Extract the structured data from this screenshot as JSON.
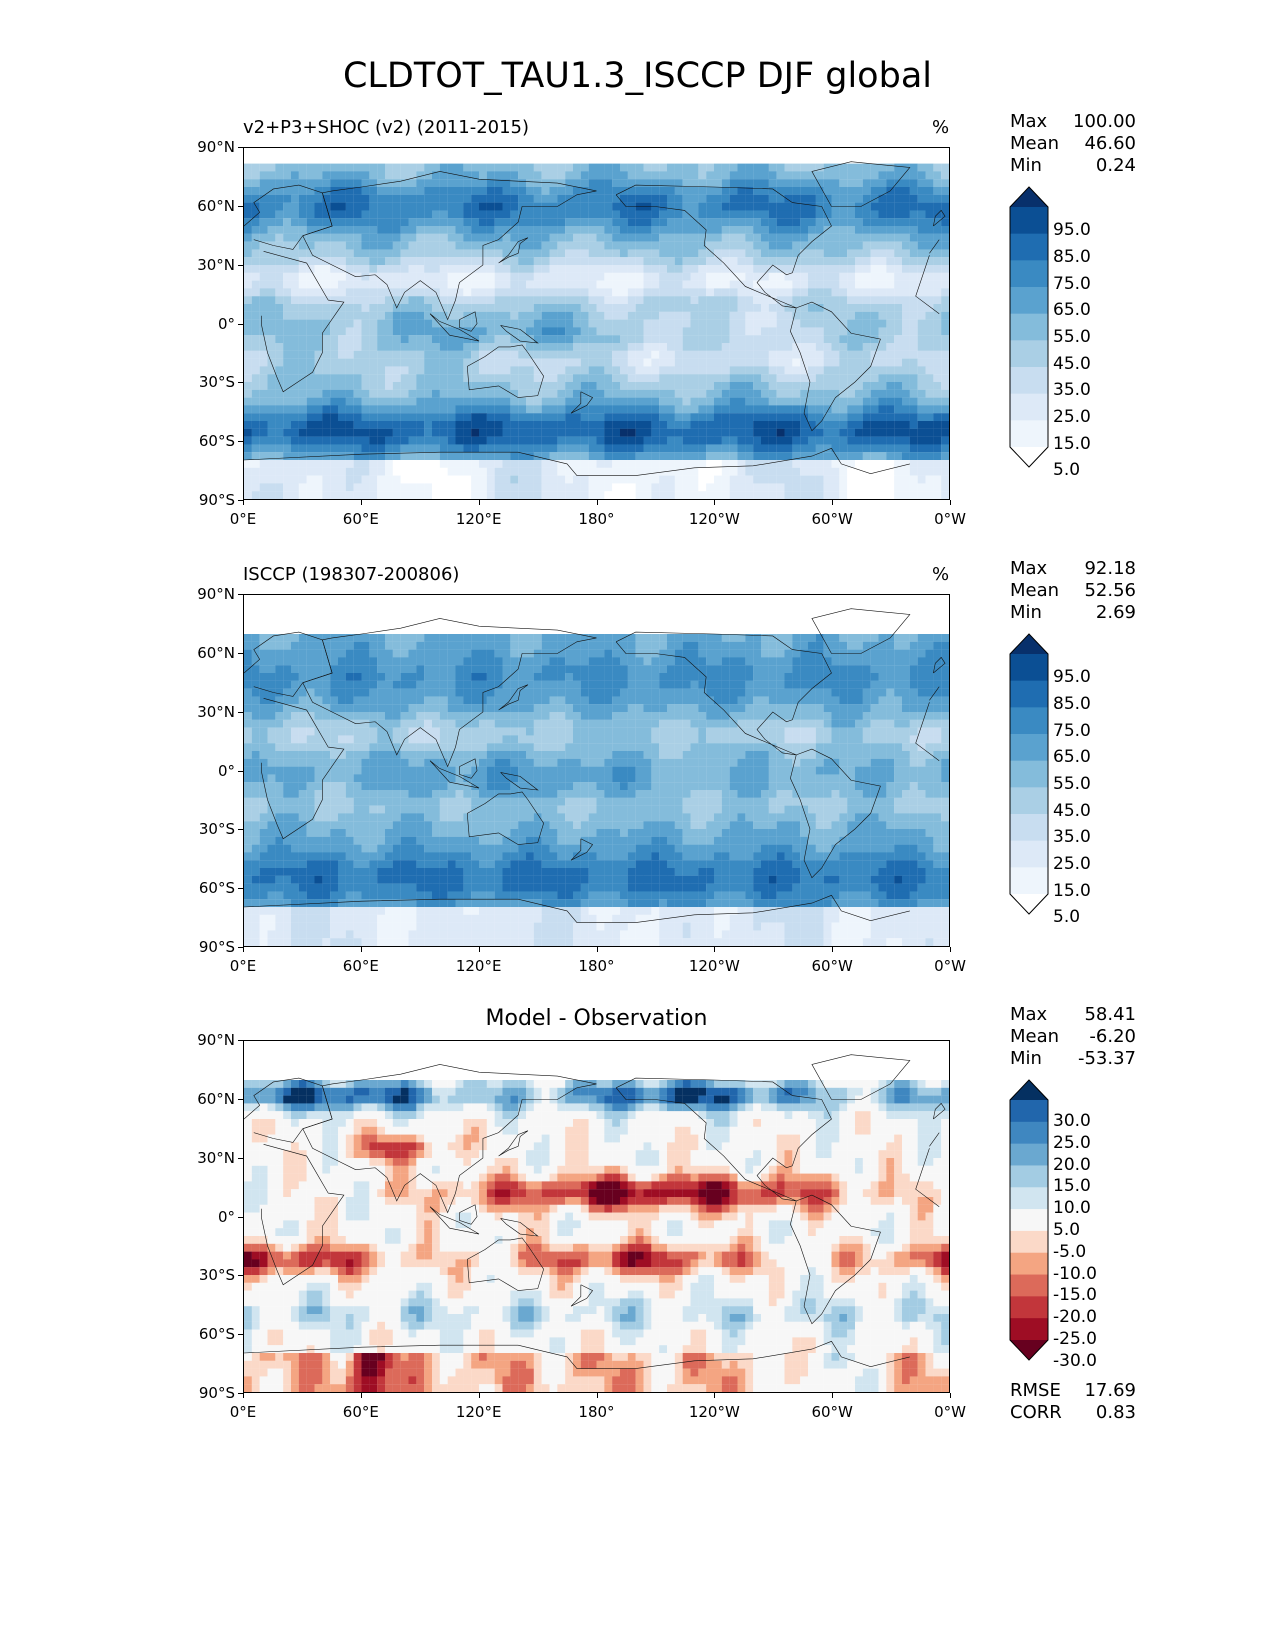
{
  "suptitle": "CLDTOT_TAU1.3_ISCCP DJF global",
  "panels": [
    {
      "id": "test",
      "title_left": "v2+P3+SHOC (v2) (2011-2015)",
      "title_center": "",
      "units": "%",
      "stats": [
        {
          "label": "Max",
          "value": "100.00"
        },
        {
          "label": "Mean",
          "value": "46.60"
        },
        {
          "label": "Min",
          "value": "0.24"
        }
      ],
      "colorbar": {
        "levels": [
          "95.0",
          "85.0",
          "75.0",
          "65.0",
          "55.0",
          "45.0",
          "35.0",
          "25.0",
          "15.0",
          "5.0"
        ],
        "colors": [
          "#08306b",
          "#0b4f94",
          "#1f6db1",
          "#3a8ac2",
          "#5aa2cf",
          "#84bcdb",
          "#aacfe5",
          "#c8ddf0",
          "#dde9f7",
          "#eef5fc",
          "#ffffff"
        ]
      }
    },
    {
      "id": "reference",
      "title_left": "ISCCP (198307-200806)",
      "title_center": "",
      "units": "%",
      "stats": [
        {
          "label": "Max",
          "value": "92.18"
        },
        {
          "label": "Mean",
          "value": "52.56"
        },
        {
          "label": "Min",
          "value": "2.69"
        }
      ],
      "colorbar": {
        "levels": [
          "95.0",
          "85.0",
          "75.0",
          "65.0",
          "55.0",
          "45.0",
          "35.0",
          "25.0",
          "15.0",
          "5.0"
        ],
        "colors": [
          "#08306b",
          "#0b4f94",
          "#1f6db1",
          "#3a8ac2",
          "#5aa2cf",
          "#84bcdb",
          "#aacfe5",
          "#c8ddf0",
          "#dde9f7",
          "#eef5fc",
          "#ffffff"
        ]
      }
    },
    {
      "id": "diff",
      "title_left": "",
      "title_center": "Model - Observation",
      "units": "",
      "stats": [
        {
          "label": "Max",
          "value": "58.41"
        },
        {
          "label": "Mean",
          "value": "-6.20"
        },
        {
          "label": "Min",
          "value": "-53.37"
        }
      ],
      "extra_stats": [
        {
          "label": "RMSE",
          "value": "17.69"
        },
        {
          "label": "CORR",
          "value": "0.83"
        }
      ],
      "colorbar": {
        "levels": [
          "30.0",
          "25.0",
          "20.0",
          "15.0",
          "10.0",
          "5.0",
          "-5.0",
          "-10.0",
          "-15.0",
          "-20.0",
          "-25.0",
          "-30.0"
        ],
        "colors": [
          "#053061",
          "#2166ac",
          "#3f87c0",
          "#6aa8d0",
          "#a3cce3",
          "#d1e5f0",
          "#f7f7f7",
          "#fbd9c8",
          "#f4a582",
          "#dc6a5a",
          "#c2363b",
          "#9e0d24",
          "#67001f"
        ]
      }
    }
  ],
  "chart_data": {
    "type": "heatmap",
    "title": "CLDTOT_TAU1.3_ISCCP DJF global",
    "variable": "CLDTOT_TAU1.3_ISCCP",
    "season": "DJF",
    "region": "global",
    "units": "%",
    "x_ticks": [
      "0°E",
      "60°E",
      "120°E",
      "180°",
      "120°W",
      "60°W",
      "0°W"
    ],
    "y_ticks": [
      "90°N",
      "60°N",
      "30°N",
      "0°",
      "30°S",
      "60°S",
      "90°S"
    ],
    "xlim": [
      0,
      360
    ],
    "ylim": [
      -90,
      90
    ],
    "panels": [
      {
        "name": "v2+P3+SHOC (v2) (2011-2015)",
        "max": 100.0,
        "mean": 46.6,
        "min": 0.24,
        "levels": [
          5,
          15,
          25,
          35,
          45,
          55,
          65,
          75,
          85,
          95
        ],
        "data_lat_range": [
          -90,
          82
        ]
      },
      {
        "name": "ISCCP (198307-200806)",
        "max": 92.18,
        "mean": 52.56,
        "min": 2.69,
        "levels": [
          5,
          15,
          25,
          35,
          45,
          55,
          65,
          75,
          85,
          95
        ],
        "data_lat_range": [
          -90,
          70
        ]
      },
      {
        "name": "Model - Observation",
        "max": 58.41,
        "mean": -6.2,
        "min": -53.37,
        "rmse": 17.69,
        "corr": 0.83,
        "levels": [
          -30,
          -25,
          -20,
          -15,
          -10,
          -5,
          5,
          10,
          15,
          20,
          25,
          30
        ],
        "data_lat_range": [
          -90,
          70
        ]
      }
    ]
  }
}
